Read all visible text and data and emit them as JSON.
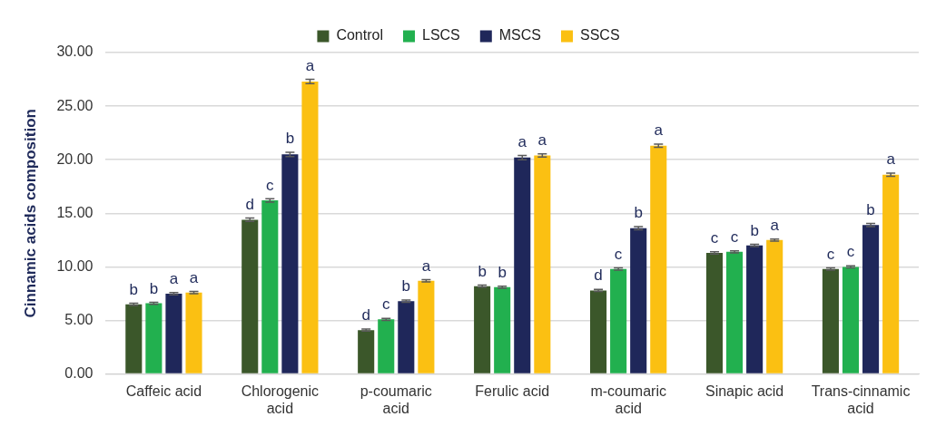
{
  "chart_data": {
    "type": "bar",
    "ylabel": "Cinnamic acids composition",
    "categories": [
      "Caffeic acid",
      "Chlorogenic acid",
      "p-coumaric acid",
      "Ferulic acid",
      "m-coumaric acid",
      "Sinapic acid",
      "Trans-cinnamic acid"
    ],
    "series": [
      {
        "name": "Control",
        "color": "#3b572a",
        "values": [
          6.5,
          14.4,
          4.1,
          8.2,
          7.8,
          11.3,
          9.8
        ],
        "errors": [
          0.1,
          0.15,
          0.1,
          0.1,
          0.1,
          0.1,
          0.1
        ],
        "value_labels": [
          "b",
          "d",
          "d",
          "b",
          "d",
          "c",
          "c"
        ]
      },
      {
        "name": "LSCS",
        "color": "#22b04f",
        "values": [
          6.6,
          16.2,
          5.1,
          8.1,
          9.8,
          11.4,
          10.0
        ],
        "errors": [
          0.1,
          0.15,
          0.1,
          0.1,
          0.1,
          0.1,
          0.1
        ],
        "value_labels": [
          "b",
          "c",
          "c",
          "b",
          "c",
          "c",
          "c"
        ]
      },
      {
        "name": "MSCS",
        "color": "#1f275a",
        "values": [
          7.5,
          20.5,
          6.8,
          20.2,
          13.6,
          12.0,
          13.9
        ],
        "errors": [
          0.1,
          0.2,
          0.1,
          0.2,
          0.15,
          0.1,
          0.15
        ],
        "value_labels": [
          "a",
          "b",
          "b",
          "a",
          "b",
          "b",
          "b"
        ]
      },
      {
        "name": "SSCS",
        "color": "#fbc012",
        "values": [
          7.6,
          27.3,
          8.7,
          20.4,
          21.3,
          12.5,
          18.6
        ],
        "errors": [
          0.1,
          0.2,
          0.1,
          0.15,
          0.15,
          0.1,
          0.15
        ],
        "value_labels": [
          "a",
          "a",
          "a",
          "a",
          "a",
          "a",
          "a"
        ]
      }
    ],
    "ylim": [
      0,
      30
    ],
    "yticks": [
      {
        "value": 0,
        "label": "0.00"
      },
      {
        "value": 5,
        "label": "5.00"
      },
      {
        "value": 10,
        "label": "10.00"
      },
      {
        "value": 15,
        "label": "15.00"
      },
      {
        "value": 20,
        "label": "20.00"
      },
      {
        "value": 25,
        "label": "25.00"
      },
      {
        "value": 30,
        "label": "30.00"
      }
    ],
    "grid": "y",
    "legend": "top"
  }
}
